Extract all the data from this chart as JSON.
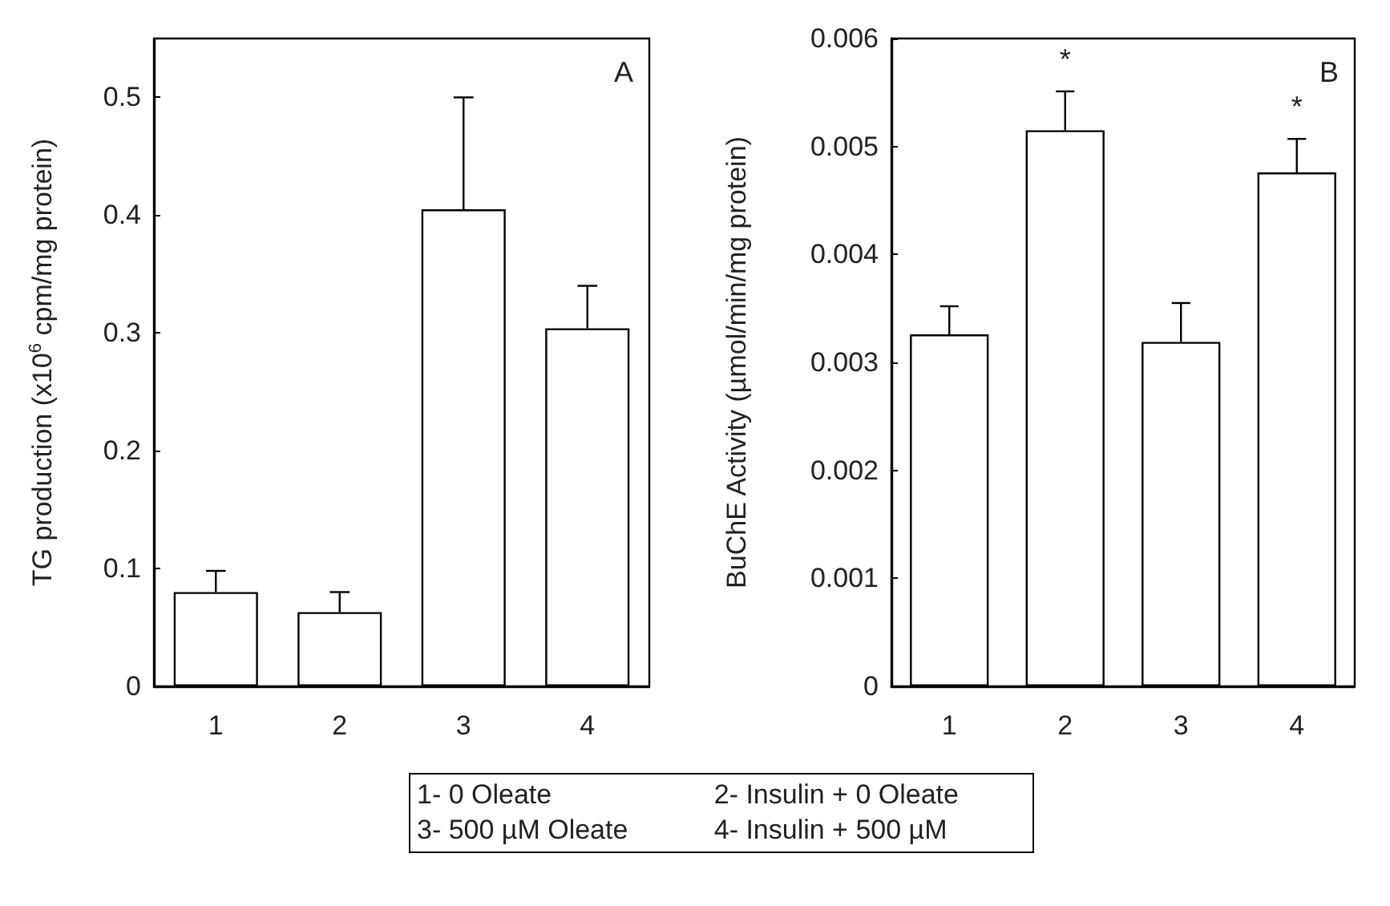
{
  "chart_data": [
    {
      "type": "bar",
      "ylabel": "TG production (x10$^{6}$ cpm/mg protein)",
      "annotations": [
        "A"
      ],
      "categories": [
        "1",
        "2",
        "3",
        "4"
      ],
      "series": [
        {
          "color": "#ffffff",
          "values": [
            0.08,
            0.063,
            0.405,
            0.304
          ],
          "errors": [
            0.018,
            0.017,
            0.095,
            0.036
          ]
        }
      ],
      "ylim": [
        0,
        0.55
      ],
      "yticks": [
        0,
        0.1,
        0.2,
        0.3,
        0.4,
        0.5
      ],
      "grid": false
    },
    {
      "type": "bar",
      "ylabel": "BuChE Activity (µmol/min/mg protein)",
      "annotations": [
        "B",
        {
          "text": "*",
          "x": "2",
          "y": 0.00551
        },
        {
          "text": "*",
          "x": "4",
          "y": 0.00507
        }
      ],
      "categories": [
        "1",
        "2",
        "3",
        "4"
      ],
      "series": [
        {
          "color": "#ffffff",
          "values": [
            0.00326,
            0.00515,
            0.00319,
            0.00476
          ],
          "errors": [
            0.00026,
            0.00036,
            0.00036,
            0.00031
          ]
        }
      ],
      "ylim": [
        0,
        0.006
      ],
      "yticks": [
        0,
        0.001,
        0.002,
        0.003,
        0.004,
        0.005,
        0.006
      ],
      "grid": false
    },
    {
      "type": "other",
      "annotations": [
        "1- 0 Oleate",
        "2- Insulin + 0 Oleate",
        "3- 500 µM Oleate",
        "4- Insulin + 500 µM"
      ]
    }
  ]
}
